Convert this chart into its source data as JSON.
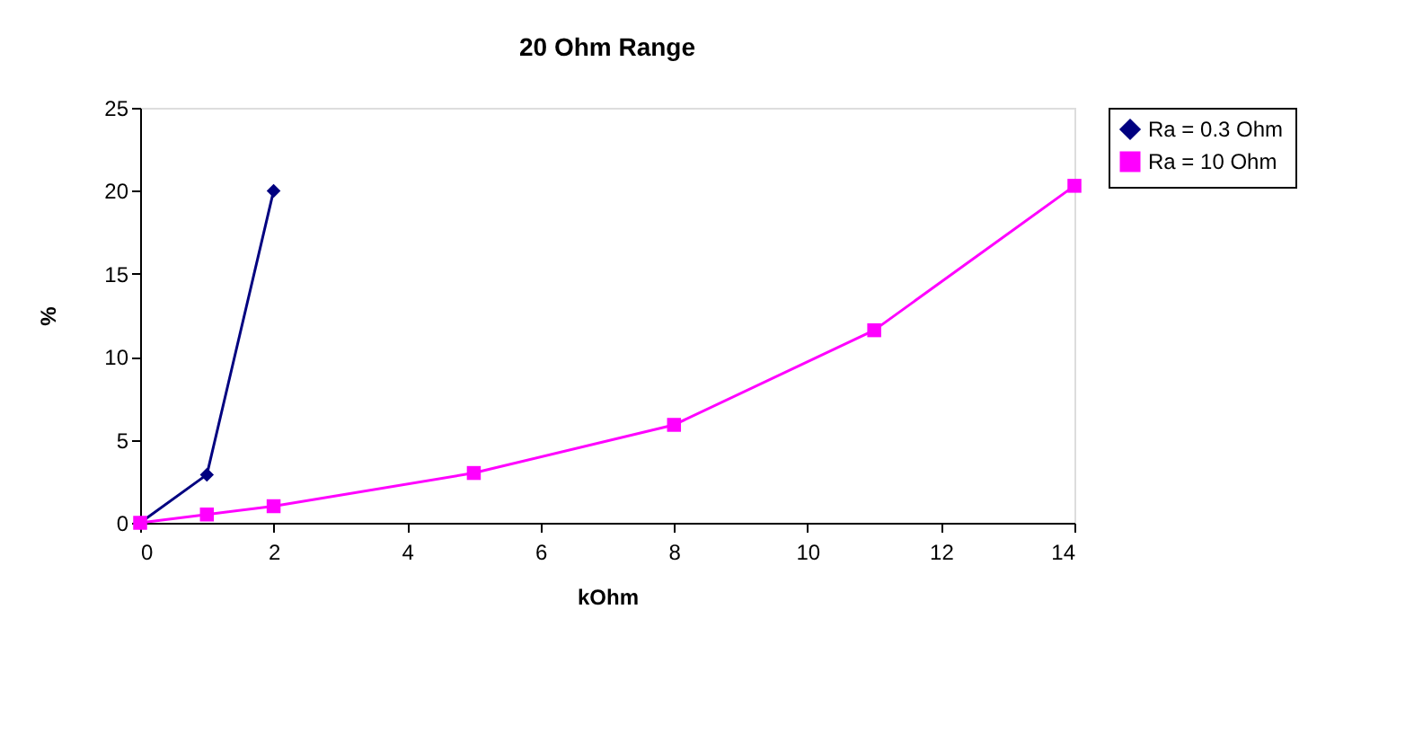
{
  "chart_data": {
    "type": "line",
    "title": "20 Ohm Range",
    "xlabel": "kOhm",
    "ylabel": "%",
    "xlim": [
      0,
      14
    ],
    "xticks": [
      0,
      2,
      4,
      6,
      8,
      10,
      12,
      14
    ],
    "ylim": [
      0,
      25
    ],
    "yticks": [
      0,
      5,
      10,
      15,
      20,
      25
    ],
    "grid": false,
    "legend": "right",
    "line_style": "solid",
    "series": [
      {
        "name": "Ra = 0.3 Ohm",
        "color": "#000080",
        "marker": "diamond",
        "x": [
          0,
          1,
          2
        ],
        "values": [
          0,
          2.9,
          20
        ]
      },
      {
        "name": "Ra = 10 Ohm",
        "color": "#ff00ff",
        "marker": "square",
        "x": [
          0,
          1,
          2,
          5,
          8,
          11,
          14
        ],
        "values": [
          0,
          0.5,
          1,
          3,
          5.9,
          11.6,
          20.3
        ]
      }
    ]
  }
}
